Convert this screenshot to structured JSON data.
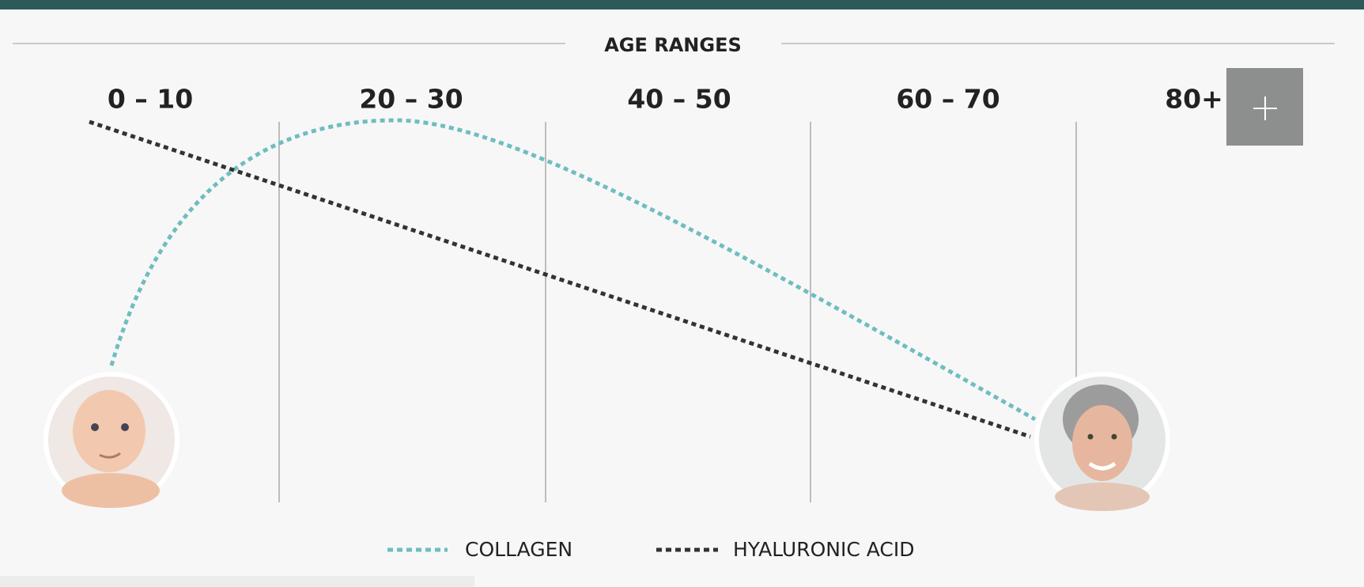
{
  "header": {
    "title": "AGE RANGES"
  },
  "age_ranges": [
    "0 – 10",
    "20 – 30",
    "40 – 50",
    "60 – 70",
    "80+"
  ],
  "legend": [
    "COLLAGEN",
    "HYALURONIC ACID"
  ]
}
